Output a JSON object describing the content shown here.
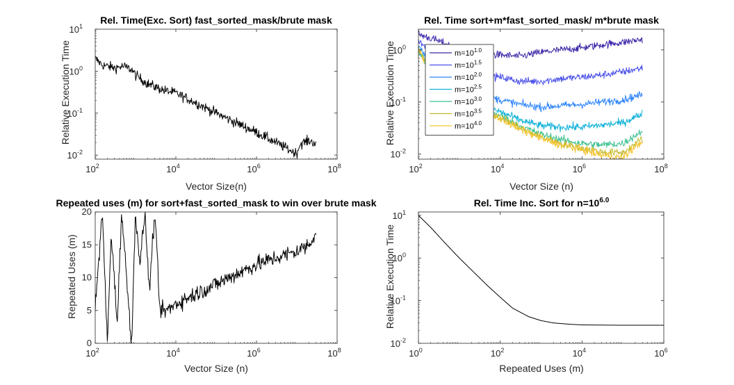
{
  "chart_data": [
    {
      "id": "p1",
      "type": "line",
      "title": "Rel. Time(Exc. Sort) fast_sorted_mask/brute mask",
      "xlabel": "Vector Size(n)",
      "ylabel": "Relative Execution Time",
      "xscale": "log",
      "yscale": "log",
      "xlim": [
        100,
        100000000
      ],
      "ylim": [
        0.008,
        10
      ],
      "xticks": [
        100,
        10000,
        1000000,
        100000000
      ],
      "xtick_exponents": [
        "2",
        "4",
        "6",
        "8"
      ],
      "yticks": [
        0.01,
        0.1,
        1,
        10
      ],
      "ytick_exponents": [
        "-2",
        "-1",
        "0",
        "1"
      ],
      "tick_base": "10",
      "series": [
        {
          "color": "#000000",
          "noise": 0.32,
          "x": [
            100,
            150,
            300,
            500,
            800,
            1000,
            2000,
            5000,
            10000,
            30000,
            100000,
            300000,
            1000000,
            3000000,
            8000000,
            10000000,
            12000000,
            15000000,
            20000000,
            30000000
          ],
          "y": [
            2.0,
            1.4,
            1.2,
            1.3,
            1.1,
            0.8,
            0.5,
            0.35,
            0.3,
            0.18,
            0.1,
            0.06,
            0.035,
            0.02,
            0.012,
            0.011,
            0.018,
            0.02,
            0.022,
            0.019
          ]
        }
      ]
    },
    {
      "id": "p2",
      "type": "line",
      "title": "Rel. Time sort+m*fast_sorted_mask/ m*brute mask",
      "xlabel": "Vector Size (n)",
      "ylabel": "Relative Execution Time",
      "xscale": "log",
      "yscale": "log",
      "xlim": [
        100,
        100000000
      ],
      "ylim": [
        0.008,
        2.5
      ],
      "xticks": [
        100,
        10000,
        1000000,
        100000000
      ],
      "xtick_exponents": [
        "2",
        "4",
        "6",
        "8"
      ],
      "yticks": [
        0.01,
        0.1,
        1
      ],
      "ytick_exponents": [
        "-2",
        "-1",
        "0"
      ],
      "tick_base": "10",
      "legend": {
        "placement": "top-left",
        "entries": [
          {
            "prefix": "m=10",
            "exp": "1.0",
            "color": "#3e26a8"
          },
          {
            "prefix": "m=10",
            "exp": "1.5",
            "color": "#4a50e9"
          },
          {
            "prefix": "m=10",
            "exp": "2.0",
            "color": "#2f85fa"
          },
          {
            "prefix": "m=10",
            "exp": "2.5",
            "color": "#0fb2d8"
          },
          {
            "prefix": "m=10",
            "exp": "3.0",
            "color": "#3cc08f"
          },
          {
            "prefix": "m=10",
            "exp": "3.5",
            "color": "#c4b92a"
          },
          {
            "prefix": "m=10",
            "exp": "4.0",
            "color": "#f6c530"
          }
        ]
      },
      "series": [
        {
          "color": "#3e26a8",
          "noise": 0.2,
          "x": [
            100,
            300,
            1000,
            3000,
            10000,
            30000,
            100000,
            300000,
            1000000,
            3000000,
            10000000,
            30000000
          ],
          "y": [
            2.0,
            1.5,
            1.0,
            0.85,
            0.8,
            0.75,
            0.9,
            1.0,
            1.1,
            1.25,
            1.4,
            1.6
          ]
        },
        {
          "color": "#4a50e9",
          "noise": 0.2,
          "x": [
            100,
            300,
            1000,
            3000,
            10000,
            30000,
            100000,
            300000,
            1000000,
            3000000,
            10000000,
            30000000
          ],
          "y": [
            1.5,
            0.6,
            0.4,
            0.32,
            0.3,
            0.25,
            0.25,
            0.28,
            0.3,
            0.33,
            0.38,
            0.45
          ]
        },
        {
          "color": "#2f85fa",
          "noise": 0.2,
          "x": [
            100,
            300,
            1000,
            3000,
            10000,
            30000,
            100000,
            300000,
            1000000,
            3000000,
            10000000,
            30000000
          ],
          "y": [
            1.2,
            0.4,
            0.2,
            0.14,
            0.11,
            0.09,
            0.08,
            0.085,
            0.09,
            0.1,
            0.11,
            0.14
          ]
        },
        {
          "color": "#0fb2d8",
          "noise": 0.2,
          "x": [
            100,
            300,
            1000,
            3000,
            10000,
            30000,
            100000,
            300000,
            1000000,
            3000000,
            10000000,
            30000000
          ],
          "y": [
            1.0,
            0.3,
            0.15,
            0.09,
            0.065,
            0.045,
            0.035,
            0.033,
            0.033,
            0.036,
            0.04,
            0.06
          ]
        },
        {
          "color": "#3cc08f",
          "noise": 0.2,
          "x": [
            100,
            300,
            1000,
            3000,
            10000,
            30000,
            100000,
            300000,
            1000000,
            3000000,
            10000000,
            30000000
          ],
          "y": [
            1.0,
            0.25,
            0.12,
            0.08,
            0.055,
            0.035,
            0.024,
            0.019,
            0.016,
            0.015,
            0.016,
            0.028
          ]
        },
        {
          "color": "#c4b92a",
          "noise": 0.2,
          "x": [
            100,
            300,
            1000,
            3000,
            10000,
            30000,
            100000,
            300000,
            1000000,
            3000000,
            10000000,
            30000000
          ],
          "y": [
            1.0,
            0.22,
            0.11,
            0.075,
            0.05,
            0.032,
            0.021,
            0.016,
            0.013,
            0.011,
            0.0105,
            0.02
          ]
        },
        {
          "color": "#f6c530",
          "noise": 0.2,
          "x": [
            100,
            300,
            1000,
            3000,
            10000,
            30000,
            100000,
            300000,
            1000000,
            3000000,
            10000000,
            30000000
          ],
          "y": [
            1.0,
            0.2,
            0.1,
            0.07,
            0.048,
            0.03,
            0.02,
            0.015,
            0.012,
            0.0095,
            0.0085,
            0.018
          ]
        }
      ]
    },
    {
      "id": "p3",
      "type": "line",
      "title": "Repeated uses (m) for sort+fast_sorted_mask to win over brute mask",
      "xlabel": "Vector Size (n)",
      "ylabel": "Repeated Uses (m)",
      "xscale": "log",
      "yscale": "linear",
      "xlim": [
        100,
        100000000
      ],
      "ylim": [
        0,
        20
      ],
      "xticks": [
        100,
        10000,
        1000000,
        100000000
      ],
      "xtick_exponents": [
        "2",
        "4",
        "6",
        "8"
      ],
      "yticks": [
        0,
        5,
        10,
        15,
        20
      ],
      "ytick_labels": [
        "0",
        "5",
        "10",
        "15",
        "20"
      ],
      "tick_base": "10",
      "series": [
        {
          "color": "#000000",
          "noise_abs": 1.2,
          "x": [
            100,
            150,
            200,
            250,
            350,
            450,
            600,
            800,
            1000,
            1300,
            1700,
            2200,
            3000,
            4000,
            6000,
            10000,
            30000,
            100000,
            300000,
            1000000,
            3000000,
            10000000,
            20000000,
            30000000
          ],
          "y": [
            5,
            20,
            0,
            17,
            3,
            20,
            10,
            0,
            20,
            12,
            20,
            8,
            20,
            5,
            5,
            6,
            7.5,
            9,
            10.5,
            12,
            13,
            14,
            15,
            17
          ]
        }
      ]
    },
    {
      "id": "p4",
      "type": "line",
      "title_prefix": "Rel. Time Inc. Sort for n=10",
      "title_exp": "6.0",
      "xlabel": "Repeated Uses (m)",
      "ylabel": "Relative Execution Time",
      "xscale": "log",
      "yscale": "log",
      "xlim": [
        1,
        1000000
      ],
      "ylim": [
        0.01,
        12
      ],
      "xticks": [
        1,
        100,
        10000,
        1000000
      ],
      "xtick_exponents": [
        "0",
        "2",
        "4",
        "6"
      ],
      "yticks": [
        0.01,
        0.1,
        1,
        10
      ],
      "ytick_exponents": [
        "-2",
        "-1",
        "0",
        "1"
      ],
      "tick_base": "10",
      "series": [
        {
          "color": "#000000",
          "x": [
            1,
            2,
            5,
            10,
            20,
            50,
            100,
            200,
            500,
            1000,
            2000,
            5000,
            10000,
            100000,
            1000000
          ],
          "y": [
            10,
            5.2,
            2.0,
            1.0,
            0.52,
            0.22,
            0.12,
            0.067,
            0.042,
            0.034,
            0.03,
            0.028,
            0.027,
            0.0265,
            0.0265
          ]
        }
      ]
    }
  ]
}
